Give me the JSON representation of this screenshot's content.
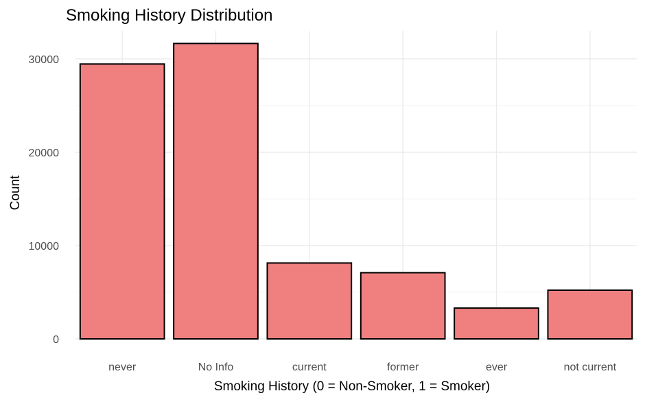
{
  "chart_data": {
    "type": "bar",
    "title": "Smoking History Distribution",
    "xlabel": "Smoking History (0 = Non-Smoker, 1 = Smoker)",
    "ylabel": "Count",
    "categories": [
      "never",
      "No Info",
      "current",
      "former",
      "ever",
      "not current"
    ],
    "values": [
      29450,
      31650,
      8130,
      7090,
      3300,
      5220
    ],
    "ylim": [
      0,
      33000
    ],
    "yticks": [
      0,
      10000,
      20000,
      30000
    ],
    "ytick_labels": [
      "0",
      "10000",
      "20000",
      "30000"
    ],
    "grid": true,
    "bar_fill": "#f08080",
    "bar_outline": "#000000",
    "grid_color": "#ebebeb"
  }
}
